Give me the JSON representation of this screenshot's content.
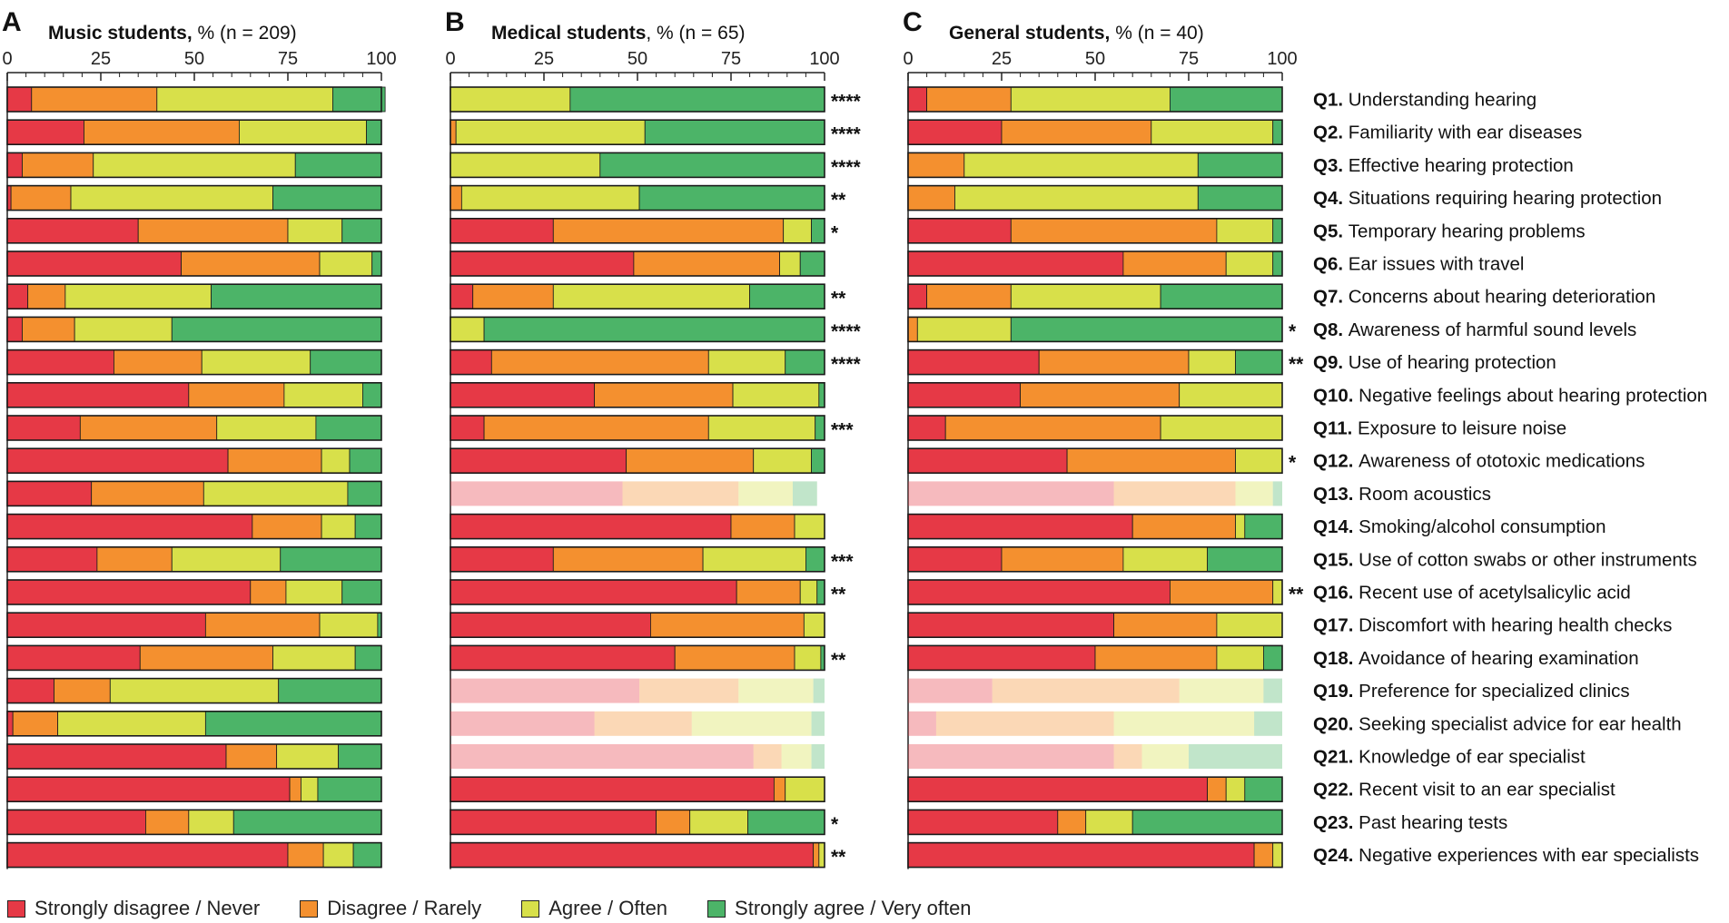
{
  "chart_data": {
    "type": "bar",
    "orientation": "horizontal",
    "stacked": true,
    "xlim": [
      0,
      100
    ],
    "xticks": [
      "0",
      "25",
      "50",
      "75",
      "100"
    ],
    "categories": [
      {
        "code": "Q1.",
        "text": "Understanding hearing"
      },
      {
        "code": "Q2.",
        "text": "Familiarity with ear diseases"
      },
      {
        "code": "Q3.",
        "text": "Effective hearing protection"
      },
      {
        "code": "Q4.",
        "text": "Situations requiring hearing protection"
      },
      {
        "code": "Q5.",
        "text": "Temporary hearing problems"
      },
      {
        "code": "Q6.",
        "text": "Ear issues with travel"
      },
      {
        "code": "Q7.",
        "text": "Concerns about hearing deterioration"
      },
      {
        "code": "Q8.",
        "text": "Awareness of harmful sound levels"
      },
      {
        "code": "Q9.",
        "text": "Use of hearing protection"
      },
      {
        "code": "Q10.",
        "text": "Negative feelings about hearing protection"
      },
      {
        "code": "Q11.",
        "text": "Exposure to leisure noise"
      },
      {
        "code": "Q12.",
        "text": "Awareness of ototoxic medications"
      },
      {
        "code": "Q13.",
        "text": "Room acoustics"
      },
      {
        "code": "Q14.",
        "text": "Smoking/alcohol consumption"
      },
      {
        "code": "Q15.",
        "text": "Use of cotton swabs or other instruments"
      },
      {
        "code": "Q16.",
        "text": "Recent use of acetylsalicylic acid"
      },
      {
        "code": "Q17.",
        "text": "Discomfort with hearing health checks"
      },
      {
        "code": "Q18.",
        "text": "Avoidance of hearing examination"
      },
      {
        "code": "Q19.",
        "text": "Preference for specialized clinics"
      },
      {
        "code": "Q20.",
        "text": "Seeking specialist advice for ear health"
      },
      {
        "code": "Q21.",
        "text": "Knowledge of ear specialist"
      },
      {
        "code": "Q22.",
        "text": "Recent visit to an ear specialist"
      },
      {
        "code": "Q23.",
        "text": "Past hearing tests"
      },
      {
        "code": "Q24.",
        "text": "Negative experiences with ear specialists"
      }
    ],
    "legend": [
      {
        "label": "Strongly disagree / Never",
        "color": "#e63946"
      },
      {
        "label": "Disagree / Rarely",
        "color": "#f4902f"
      },
      {
        "label": "Agree / Often",
        "color": "#d8e04a"
      },
      {
        "label": "Strongly agree / Very often",
        "color": "#4cb468"
      }
    ],
    "panels": [
      {
        "letter": "A",
        "title_bold": "Music students,",
        "title_rest": " % (n = 209)",
        "series": [
          [
            6.5,
            33.5,
            47,
            14
          ],
          [
            20.5,
            41.5,
            34,
            4
          ],
          [
            4,
            19,
            54,
            23
          ],
          [
            1,
            16,
            54,
            29
          ],
          [
            35,
            40,
            14.5,
            10.5
          ],
          [
            46.5,
            37,
            14,
            2.5
          ],
          [
            5.5,
            10,
            39,
            45.5
          ],
          [
            4,
            14,
            26,
            56
          ],
          [
            28.5,
            23.5,
            29,
            19
          ],
          [
            48.5,
            25.5,
            21,
            5
          ],
          [
            19.5,
            36.5,
            26.5,
            17.5
          ],
          [
            59,
            25,
            7.5,
            8.5
          ],
          [
            22.5,
            30,
            38.5,
            9
          ],
          [
            65.5,
            18.5,
            9,
            7
          ],
          [
            24,
            20,
            29,
            27
          ],
          [
            65,
            9.5,
            15,
            10.5
          ],
          [
            53,
            30.5,
            15.5,
            1
          ],
          [
            35.5,
            35.5,
            22,
            7
          ],
          [
            12.5,
            15,
            45,
            27.5
          ],
          [
            1.5,
            12,
            39.5,
            47
          ],
          [
            58.5,
            13.5,
            16.5,
            11.5
          ],
          [
            75.5,
            3,
            4.5,
            17
          ],
          [
            37,
            11.5,
            12,
            39.5
          ],
          [
            75,
            9.5,
            8,
            7.5
          ]
        ],
        "faded": [],
        "significance": []
      },
      {
        "letter": "B",
        "title_bold": "Medical students",
        "title_rest": ", % (n = 65)",
        "series": [
          [
            0,
            0,
            32,
            68
          ],
          [
            0,
            1.5,
            50.5,
            48
          ],
          [
            0,
            0,
            40,
            60
          ],
          [
            0,
            3,
            47.5,
            49.5
          ],
          [
            27.5,
            61.5,
            7.5,
            3.5
          ],
          [
            49,
            39,
            5.5,
            6.5
          ],
          [
            6,
            21.5,
            52.5,
            20
          ],
          [
            0,
            0,
            9,
            91
          ],
          [
            11,
            58,
            20.5,
            10.5
          ],
          [
            38.5,
            37,
            23,
            1.5
          ],
          [
            9,
            60,
            28.5,
            2.5
          ],
          [
            47,
            34,
            15.5,
            3.5
          ],
          [
            46,
            31,
            14.5,
            6.5
          ],
          [
            75,
            17,
            8,
            0
          ],
          [
            27.5,
            40,
            27.5,
            5
          ],
          [
            76.5,
            17,
            4.5,
            2
          ],
          [
            53.5,
            41,
            5.5,
            0
          ],
          [
            60,
            32,
            7,
            1
          ],
          [
            50.5,
            26.5,
            20,
            3
          ],
          [
            38.5,
            26,
            32,
            3.5
          ],
          [
            81,
            7.5,
            8,
            3.5
          ],
          [
            86.5,
            3,
            10.5,
            0
          ],
          [
            55,
            9,
            15.5,
            20.5
          ],
          [
            97,
            1.5,
            1.5,
            0
          ]
        ],
        "faded": [
          12,
          18,
          19,
          20
        ],
        "significance": [
          "****",
          "****",
          "****",
          "**",
          "*",
          "",
          "**",
          "****",
          "****",
          "",
          "***",
          "",
          "",
          "",
          "***",
          "**",
          "",
          "**",
          "",
          "",
          "",
          "",
          "*",
          "**"
        ]
      },
      {
        "letter": "C",
        "title_bold": "General students,",
        "title_rest": " % (n = 40)",
        "series": [
          [
            5,
            22.5,
            42.5,
            30
          ],
          [
            25,
            40,
            32.5,
            2.5
          ],
          [
            0,
            15,
            62.5,
            22.5
          ],
          [
            0,
            12.5,
            65,
            22.5
          ],
          [
            27.5,
            55,
            15,
            2.5
          ],
          [
            57.5,
            27.5,
            12.5,
            2.5
          ],
          [
            5,
            22.5,
            40,
            32.5
          ],
          [
            0,
            2.5,
            25,
            72.5
          ],
          [
            35,
            40,
            12.5,
            12.5
          ],
          [
            30,
            42.5,
            27.5,
            0
          ],
          [
            10,
            57.5,
            32.5,
            0
          ],
          [
            42.5,
            45,
            12.5,
            0
          ],
          [
            55,
            32.5,
            10,
            2.5
          ],
          [
            60,
            27.5,
            2.5,
            10
          ],
          [
            25,
            32.5,
            22.5,
            20
          ],
          [
            70,
            27.5,
            2.5,
            0
          ],
          [
            55,
            27.5,
            17.5,
            0
          ],
          [
            50,
            32.5,
            12.5,
            5
          ],
          [
            22.5,
            50,
            22.5,
            5
          ],
          [
            7.5,
            47.5,
            37.5,
            7.5
          ],
          [
            55,
            7.5,
            12.5,
            25
          ],
          [
            80,
            5,
            5,
            10
          ],
          [
            40,
            7.5,
            12.5,
            40
          ],
          [
            92.5,
            5,
            2.5,
            0
          ]
        ],
        "faded": [
          12,
          18,
          19,
          20
        ],
        "significance": [
          "",
          "",
          "",
          "",
          "",
          "",
          "",
          "*",
          "**",
          "",
          "",
          "*",
          "",
          "",
          "",
          "**",
          "",
          "",
          "",
          "",
          "",
          "",
          "",
          ""
        ]
      }
    ]
  }
}
